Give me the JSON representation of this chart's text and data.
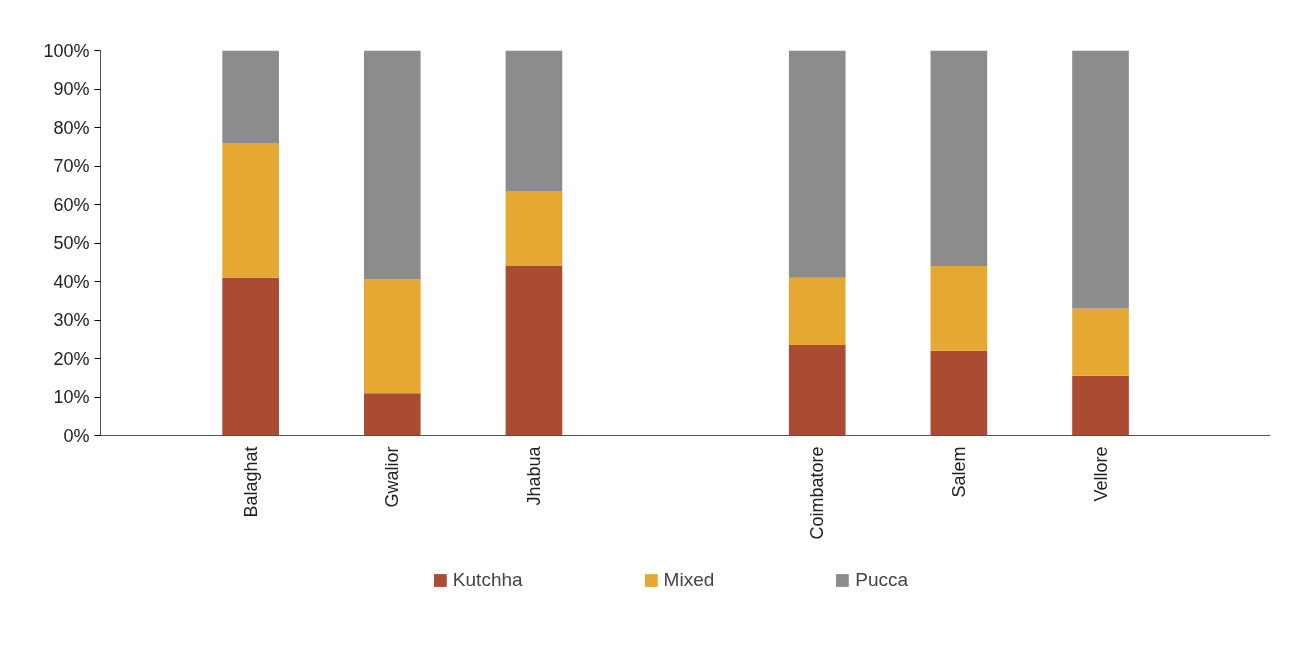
{
  "chart_data": {
    "type": "bar",
    "stacked": true,
    "categories": [
      "Balaghat",
      "Gwalior",
      "Jhabua",
      null,
      "Coimbatore",
      "Salem",
      "Vellore"
    ],
    "series": [
      {
        "name": "Kutchha",
        "color": "#a94c32",
        "values": [
          41,
          11,
          44,
          null,
          23.5,
          22,
          15.5
        ]
      },
      {
        "name": "Mixed",
        "color": "#e5a832",
        "values": [
          35,
          29.5,
          19.5,
          null,
          17.5,
          22,
          17.5
        ]
      },
      {
        "name": "Pucca",
        "color": "#8c8c8c",
        "values": [
          24,
          59.5,
          36.5,
          null,
          59,
          56,
          67
        ]
      }
    ],
    "ylim": [
      0,
      100
    ],
    "yticks": [
      {
        "value": 0,
        "label": "0%"
      },
      {
        "value": 10,
        "label": "10%"
      },
      {
        "value": 20,
        "label": "20%"
      },
      {
        "value": 30,
        "label": "30%"
      },
      {
        "value": 40,
        "label": "40%"
      },
      {
        "value": 50,
        "label": "50%"
      },
      {
        "value": 60,
        "label": "60%"
      },
      {
        "value": 70,
        "label": "70%"
      },
      {
        "value": 80,
        "label": "80%"
      },
      {
        "value": 90,
        "label": "90%"
      },
      {
        "value": 100,
        "label": "100%"
      }
    ],
    "grid": false,
    "legend": "bottom"
  }
}
